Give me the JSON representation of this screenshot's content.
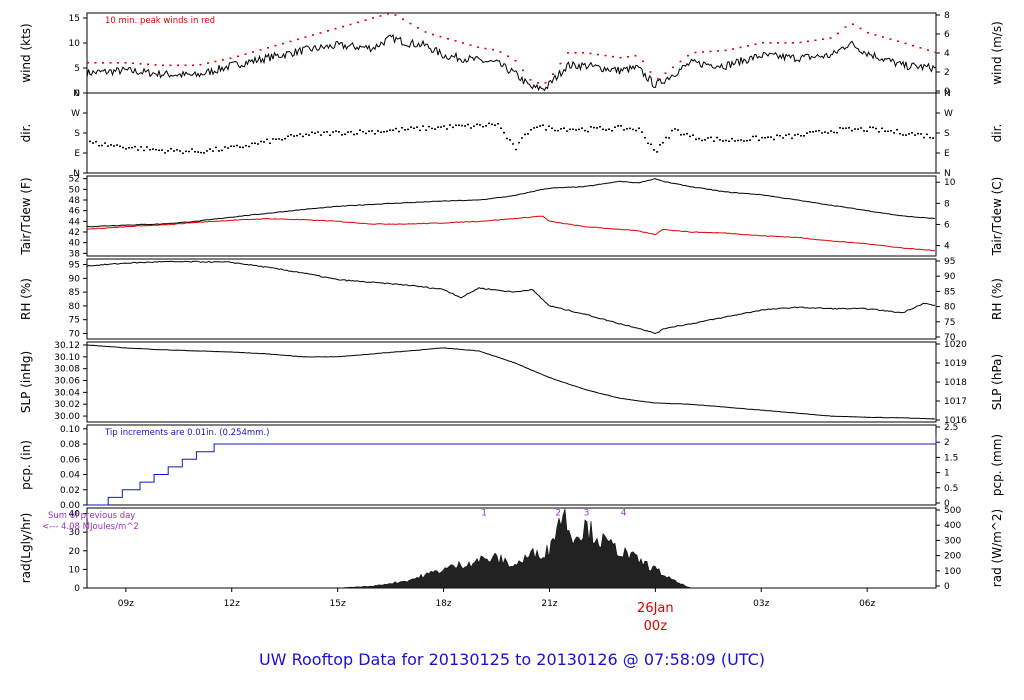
{
  "title": "UW Rooftop Data for 20130125  to  20130126 @ 07:58:09  (UTC)",
  "colors": {
    "title": "#1c10d6",
    "red": "#e00000",
    "blue": "#1414c8",
    "purple": "#9b30c8",
    "black": "#000000"
  },
  "x_axis": {
    "ticks": [
      {
        "t": 9,
        "label": "09z"
      },
      {
        "t": 12,
        "label": "12z"
      },
      {
        "t": 15,
        "label": "15z"
      },
      {
        "t": 18,
        "label": "18z"
      },
      {
        "t": 21,
        "label": "21z"
      },
      {
        "t": 27,
        "label": "03z"
      },
      {
        "t": 30,
        "label": "06z"
      }
    ],
    "day_marker": {
      "t": 24,
      "label": "26Jan",
      "sublabel": "00z"
    },
    "range": [
      7.9,
      31.95
    ]
  },
  "chart_data": [
    {
      "type": "line",
      "id": "wind",
      "ylabel": "wind (kts)",
      "ylabel2": "wind (m/s)",
      "annotation": "10 min. peak winds in red",
      "yticks": [
        0,
        5,
        10,
        15
      ],
      "y2ticks": [
        "0",
        "2",
        "4",
        "6",
        "8"
      ],
      "ylim": [
        0,
        16
      ],
      "x": [
        7.9,
        9,
        10,
        11,
        12,
        13,
        14,
        15,
        16,
        16.5,
        17,
        17.5,
        18,
        19,
        19.5,
        20,
        20.5,
        20.9,
        21.5,
        22,
        23,
        23.5,
        24,
        25,
        26,
        27,
        28,
        29,
        29.5,
        30,
        31,
        31.95
      ],
      "series": [
        {
          "name": "wind",
          "values": [
            4,
            4.5,
            3.8,
            3.5,
            5.5,
            7,
            8.5,
            9.5,
            9,
            11,
            10,
            9.5,
            7.5,
            6.5,
            6,
            4,
            1,
            1,
            5.5,
            5.5,
            4.5,
            5,
            1.5,
            6,
            5.5,
            7.5,
            7,
            7.5,
            10,
            8,
            5.5,
            5
          ]
        },
        {
          "name": "peak",
          "values": [
            6,
            6,
            5.5,
            5.5,
            7,
            9,
            11,
            13,
            15,
            16,
            14,
            12,
            11,
            9,
            8.5,
            6.5,
            2,
            2,
            8,
            8,
            7,
            7.5,
            2.5,
            8,
            8.5,
            10,
            10,
            11,
            14,
            12,
            10,
            8
          ]
        }
      ]
    },
    {
      "type": "scatter",
      "id": "dir",
      "ylabel": "dir.",
      "ylabel2": "dir.",
      "yticks": [
        "N",
        "E",
        "S",
        "W",
        "N"
      ],
      "ylim": [
        0,
        360
      ],
      "x": [
        7.9,
        9,
        10,
        11,
        12,
        13,
        14,
        15,
        16,
        17,
        18,
        19,
        19.5,
        20,
        20.5,
        21,
        22,
        23,
        23.5,
        24,
        24.5,
        25,
        26,
        27,
        28,
        29,
        30,
        31,
        31.95
      ],
      "values": [
        140,
        120,
        105,
        100,
        115,
        145,
        175,
        185,
        190,
        200,
        210,
        215,
        225,
        110,
        215,
        205,
        200,
        205,
        200,
        100,
        200,
        165,
        150,
        160,
        170,
        195,
        200,
        185,
        165
      ]
    },
    {
      "type": "line",
      "id": "temp",
      "ylabel": "Tair/Tdew (F)",
      "ylabel2": "Tair/Tdew (C)",
      "yticks": [
        38,
        40,
        42,
        44,
        46,
        48,
        50,
        52
      ],
      "y2ticks": [
        "4",
        "6",
        "8",
        "10"
      ],
      "ylim": [
        37.5,
        52.5
      ],
      "x": [
        7.9,
        9,
        10,
        11,
        12,
        13,
        14,
        15,
        16,
        17,
        18,
        19,
        20,
        20.8,
        21,
        22,
        23,
        23.5,
        24,
        24.2,
        25,
        26,
        27,
        28,
        29,
        30,
        31,
        31.95
      ],
      "series": [
        {
          "name": "Tair",
          "values": [
            43,
            43.3,
            43.5,
            44,
            44.8,
            45.5,
            46.2,
            46.8,
            47.2,
            47.5,
            47.8,
            48,
            48.8,
            50,
            50.2,
            50.5,
            51.5,
            51.2,
            52,
            51.5,
            50.5,
            49.5,
            49,
            48,
            47,
            46,
            45,
            44.5
          ]
        },
        {
          "name": "Tdew",
          "values": [
            42.5,
            43,
            43.3,
            43.8,
            44.2,
            44.5,
            44.3,
            44,
            43.5,
            43.5,
            43.7,
            44,
            44.5,
            45,
            44,
            43,
            42.5,
            42.2,
            41.5,
            42.5,
            42,
            41.8,
            41.3,
            41,
            40.3,
            39.8,
            39,
            38.5
          ]
        }
      ]
    },
    {
      "type": "line",
      "id": "rh",
      "ylabel": "RH (%)",
      "ylabel2": "RH (%)",
      "yticks": [
        70,
        75,
        80,
        85,
        90,
        95
      ],
      "ylim": [
        68,
        97
      ],
      "x": [
        7.9,
        9,
        10,
        11,
        12,
        13,
        14,
        15,
        16,
        17,
        18,
        18.5,
        19,
        20,
        20.5,
        21,
        22,
        23,
        23.5,
        24,
        24.3,
        25,
        26,
        27,
        28,
        29,
        30,
        31,
        31.6,
        31.95
      ],
      "series": [
        {
          "name": "RH",
          "values": [
            94.5,
            95.5,
            96,
            96,
            95.8,
            94,
            92,
            89.5,
            88.5,
            87.5,
            86,
            83,
            86.5,
            85,
            86,
            80,
            77,
            73.5,
            72,
            70,
            72,
            73.5,
            76,
            78.5,
            79.5,
            79,
            79,
            77.5,
            81,
            80
          ]
        }
      ]
    },
    {
      "type": "line",
      "id": "slp",
      "ylabel": "SLP (inHg)",
      "ylabel2": "SLP (hPa)",
      "yticks": [
        "30.00",
        "30.02",
        "30.04",
        "30.06",
        "30.08",
        "30.10",
        "30.12"
      ],
      "y2ticks": [
        "1016",
        "1017",
        "1018",
        "1019",
        "1020"
      ],
      "ylim": [
        29.99,
        30.125
      ],
      "x": [
        7.9,
        9,
        10,
        11,
        12,
        13,
        14,
        15,
        16,
        17,
        18,
        19,
        20,
        21,
        22,
        23,
        24,
        25,
        26,
        27,
        28,
        29,
        30,
        31,
        31.95
      ],
      "series": [
        {
          "name": "SLP",
          "values": [
            30.12,
            30.115,
            30.112,
            30.11,
            30.108,
            30.105,
            30.1,
            30.1,
            30.105,
            30.11,
            30.115,
            30.11,
            30.09,
            30.065,
            30.045,
            30.03,
            30.022,
            30.02,
            30.015,
            30.01,
            30.005,
            30.0,
            29.998,
            29.997,
            29.995
          ]
        }
      ]
    },
    {
      "type": "line",
      "id": "pcp",
      "ylabel": "pcp. (in)",
      "ylabel2": "pcp. (mm)",
      "annotation": "Tip increments are 0.01in. (0.254mm.)",
      "yticks": [
        "0.00",
        "0.02",
        "0.04",
        "0.06",
        "0.08",
        "0.10"
      ],
      "y2ticks": [
        "0",
        "0.5",
        "1",
        "1.5",
        "2",
        "2.5"
      ],
      "ylim": [
        0,
        0.105
      ],
      "x": [
        7.9,
        8.2,
        8.5,
        8.9,
        9.4,
        9.8,
        10.2,
        10.6,
        11.0,
        11.5,
        31.95
      ],
      "series": [
        {
          "name": "pcp",
          "values": [
            0,
            0,
            0.01,
            0.02,
            0.03,
            0.04,
            0.05,
            0.06,
            0.07,
            0.08,
            0.09
          ]
        }
      ]
    },
    {
      "type": "area",
      "id": "rad",
      "ylabel": "rad(Lgly/hr)",
      "ylabel2": "rad (W/m^2)",
      "annotation_prev": "Sum of previous day",
      "annotation_total": "<--- 4.08 MJoules/m^2",
      "markers": [
        {
          "t": 19.15,
          "label": "1"
        },
        {
          "t": 21.25,
          "label": "2"
        },
        {
          "t": 22.05,
          "label": "3"
        },
        {
          "t": 23.1,
          "label": "4"
        }
      ],
      "yticks": [
        0,
        10,
        20,
        30,
        40
      ],
      "y2ticks": [
        "0",
        "100",
        "200",
        "300",
        "400",
        "500"
      ],
      "ylim": [
        0,
        43
      ],
      "x": [
        7.9,
        15,
        16,
        17,
        18,
        19,
        19.5,
        20,
        20.5,
        21,
        21.2,
        21.4,
        21.6,
        21.8,
        22,
        22.2,
        22.5,
        23,
        23.5,
        24,
        24.5,
        25,
        31.95
      ],
      "series": [
        {
          "name": "rad",
          "values": [
            0,
            0,
            1,
            4,
            10,
            15,
            16,
            12,
            18,
            20,
            34,
            40,
            30,
            28,
            33,
            30,
            25,
            20,
            15,
            10,
            4,
            0,
            0
          ]
        }
      ]
    }
  ]
}
